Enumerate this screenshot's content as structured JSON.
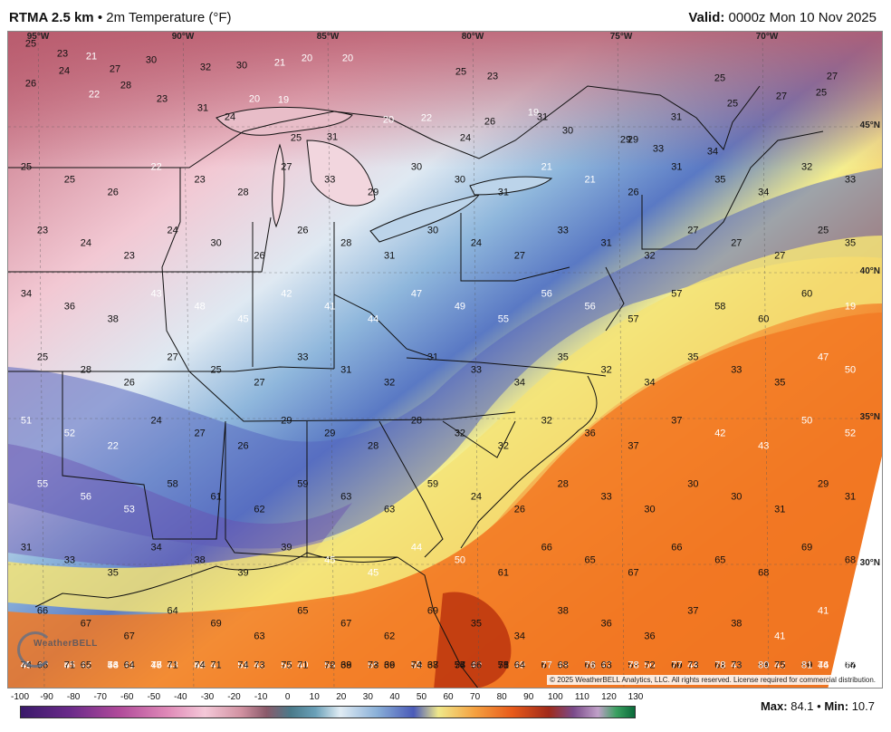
{
  "header": {
    "product": "RTMA 2.5 km",
    "separator": "•",
    "field": "2m Temperature (°F)",
    "valid_label": "Valid:",
    "valid_time": "0000z Mon 10 Nov 2025"
  },
  "map": {
    "longitude_labels": [
      "95°W",
      "90°W",
      "85°W",
      "80°W",
      "75°W",
      "70°W"
    ],
    "latitude_labels": [
      "45°N",
      "40°N",
      "35°N",
      "30°N"
    ],
    "copyright": "© 2025 WeatherBELL Analytics, LLC. All rights reserved. License required for commercial distribution.",
    "logo_text": "WeatherBELL",
    "station_values": [
      25,
      23,
      21,
      27,
      30,
      32,
      30,
      21,
      20,
      20,
      25,
      23,
      19,
      29,
      31,
      25,
      25,
      27,
      25,
      27,
      26,
      24,
      22,
      28,
      23,
      31,
      24,
      20,
      19,
      25,
      31,
      20,
      22,
      24,
      26,
      31,
      30,
      29,
      33,
      34,
      25,
      25,
      26,
      22,
      23,
      28,
      27,
      33,
      29,
      30,
      30,
      31,
      21,
      21,
      26,
      31,
      35,
      34,
      32,
      33,
      23,
      24,
      23,
      24,
      30,
      26,
      26,
      28,
      31,
      30,
      24,
      27,
      33,
      31,
      32,
      27,
      27,
      27,
      25,
      35,
      34,
      36,
      38,
      43,
      48,
      45,
      42,
      41,
      44,
      47,
      49,
      55,
      56,
      56,
      57,
      57,
      58,
      60,
      60,
      19,
      25,
      28,
      26,
      27,
      25,
      27,
      33,
      31,
      32,
      31,
      33,
      34,
      35,
      32,
      34,
      35,
      33,
      35,
      47,
      50,
      51,
      52,
      22,
      24,
      27,
      26,
      29,
      29,
      28,
      28,
      32,
      32,
      32,
      36,
      37,
      37,
      42,
      43,
      50,
      52,
      55,
      56,
      53,
      58,
      61,
      62,
      59,
      63,
      63,
      59,
      24,
      26,
      28,
      33,
      30,
      30,
      30,
      31,
      29,
      31,
      31,
      33,
      35,
      34,
      38,
      39,
      39,
      45,
      45,
      44,
      50,
      61,
      66,
      65,
      67,
      66,
      65,
      68,
      69,
      68,
      66,
      67,
      67,
      64,
      69,
      63,
      65,
      67,
      62,
      69,
      35,
      34,
      38,
      36,
      36,
      37,
      38,
      41,
      41,
      43,
      45,
      45,
      44,
      46,
      46,
      54,
      55,
      58,
      59,
      60,
      58,
      71,
      67,
      70,
      76,
      69,
      71,
      68,
      69,
      73,
      40,
      42,
      41,
      43,
      41,
      42,
      40,
      39,
      36,
      37,
      40,
      49,
      49,
      47,
      50,
      44,
      43,
      42,
      44,
      48,
      46,
      51,
      53,
      48,
      52,
      51,
      52,
      53,
      55,
      55,
      57,
      58,
      57,
      61,
      59,
      60,
      62,
      64,
      60,
      66,
      66,
      65,
      64,
      71,
      71,
      73,
      71,
      68,
      69,
      68,
      66,
      64,
      68,
      63,
      72,
      73,
      73,
      75,
      76,
      74,
      74,
      71,
      76,
      77,
      74,
      74,
      75,
      72,
      73,
      74,
      74,
      75,
      77,
      76,
      78,
      77,
      78,
      80,
      81,
      77
    ]
  },
  "legend": {
    "ticks": [
      "-100",
      "-90",
      "-80",
      "-70",
      "-60",
      "-50",
      "-40",
      "-30",
      "-20",
      "-10",
      "0",
      "10",
      "20",
      "30",
      "40",
      "50",
      "60",
      "70",
      "80",
      "90",
      "100",
      "110",
      "120",
      "130"
    ],
    "max_label": "Max:",
    "max_value": "84.1",
    "bullet": "•",
    "min_label": "Min:",
    "min_value": "10.7"
  }
}
